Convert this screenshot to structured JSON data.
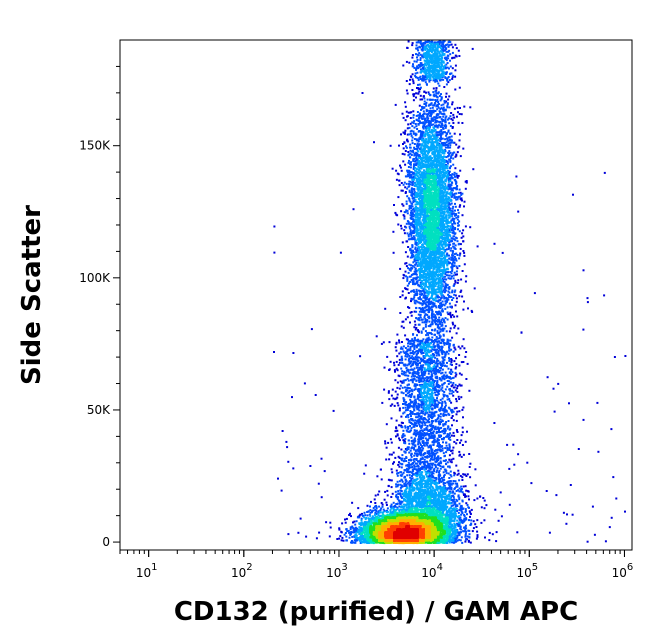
{
  "chart_data": {
    "type": "scatter",
    "style": "density-colored dot plot (flow cytometry)",
    "title": "",
    "xlabel": "CD132 (purified) / GAM APC",
    "ylabel": "Side Scatter",
    "x_scale": "log",
    "xlim": [
      5,
      1200000
    ],
    "ylim": [
      -3000,
      190000
    ],
    "x_ticks": [
      {
        "value": 10,
        "base": "10",
        "exp": "1"
      },
      {
        "value": 100,
        "base": "10",
        "exp": "2"
      },
      {
        "value": 1000,
        "base": "10",
        "exp": "3"
      },
      {
        "value": 10000,
        "base": "10",
        "exp": "4"
      },
      {
        "value": 100000,
        "base": "10",
        "exp": "5"
      },
      {
        "value": 1000000,
        "base": "10",
        "exp": "6"
      }
    ],
    "y_ticks": [
      {
        "value": 0,
        "label": "0"
      },
      {
        "value": 50000,
        "label": "50K"
      },
      {
        "value": 100000,
        "label": "100K"
      },
      {
        "value": 150000,
        "label": "150K"
      }
    ],
    "grid": false,
    "legend": "none",
    "density_colors": [
      "#0000d8",
      "#0050ff",
      "#00a8ff",
      "#00e0c0",
      "#20e020",
      "#c0e000",
      "#ffb000",
      "#ff4000",
      "#e00000"
    ],
    "populations": [
      {
        "description": "high side-scatter cluster",
        "x_center": 9000,
        "y_center": 128000,
        "y_range": [
          75000,
          190000
        ]
      },
      {
        "description": "low side-scatter cluster",
        "x_center": 4500,
        "y_center": 4000,
        "y_range": [
          0,
          20000
        ]
      },
      {
        "description": "intermediate bridge events",
        "x_center": 8000,
        "y_center": 40000,
        "y_range": [
          15000,
          75000
        ]
      }
    ]
  }
}
